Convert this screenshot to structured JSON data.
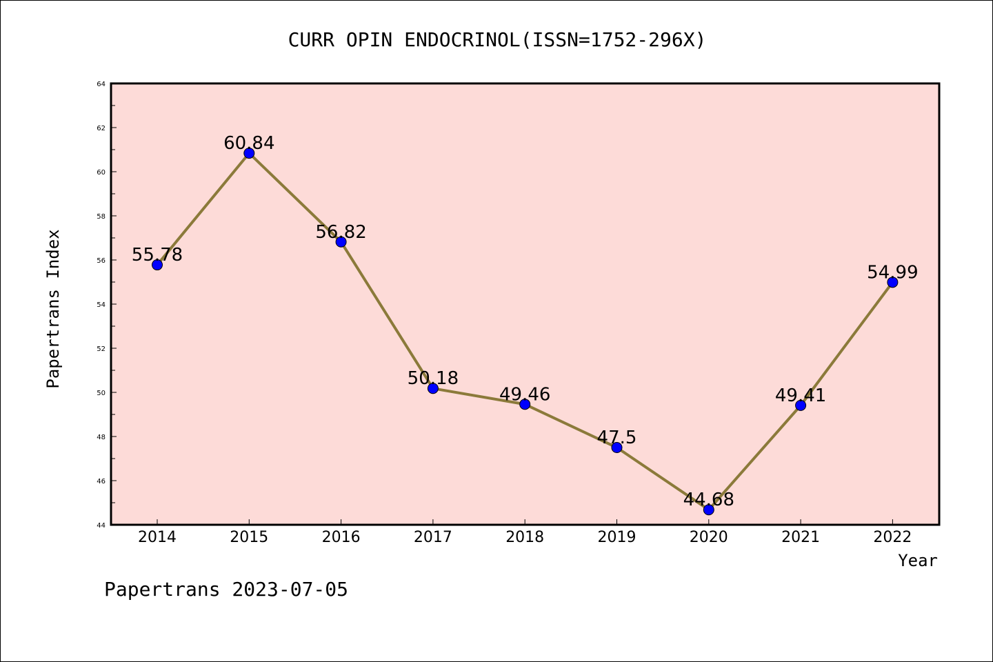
{
  "chart_data": {
    "type": "line",
    "title": "CURR OPIN ENDOCRINOL(ISSN=1752-296X)",
    "xlabel": "Year",
    "ylabel": "Papertrans Index",
    "categories": [
      "2014",
      "2015",
      "2016",
      "2017",
      "2018",
      "2019",
      "2020",
      "2021",
      "2022"
    ],
    "series": [
      {
        "values": [
          55.78,
          60.84,
          56.82,
          50.18,
          49.46,
          47.5,
          44.68,
          49.41,
          54.99
        ],
        "labels": [
          "55.78",
          "60.84",
          "56.82",
          "50.18",
          "49.46",
          "47.5",
          "44.68",
          "49.41",
          "54.99"
        ]
      }
    ],
    "ylim": [
      44,
      64
    ],
    "yticks": [
      "44",
      "46",
      "48",
      "50",
      "52",
      "54",
      "56",
      "58",
      "60",
      "62",
      "64"
    ],
    "grid": false,
    "colors": {
      "plot_background": "#fddbd8",
      "line": "#8b7a3a",
      "marker": "#0000ff"
    }
  },
  "footer": "Papertrans 2023-07-05"
}
